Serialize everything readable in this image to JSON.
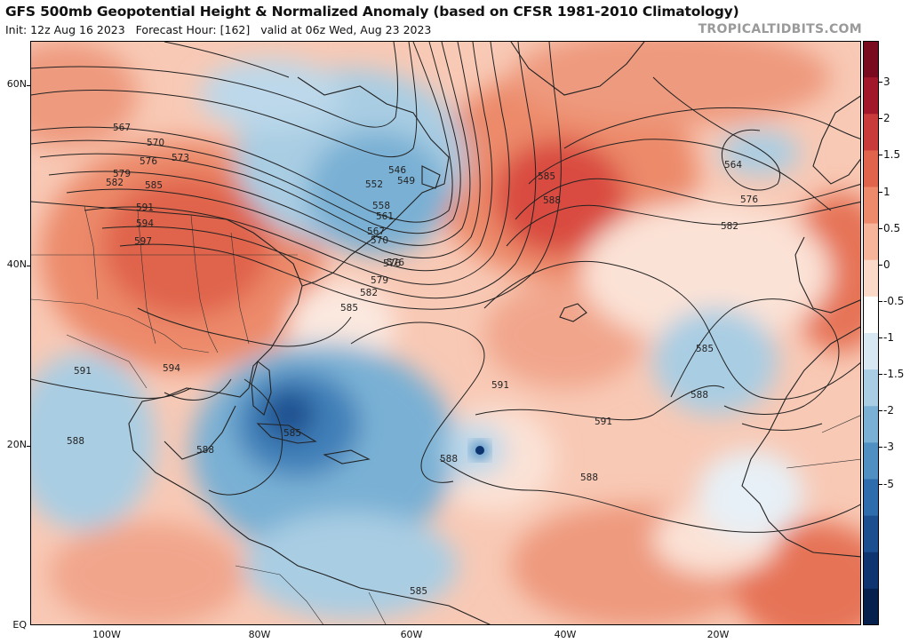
{
  "header": {
    "title": "GFS 500mb Geopotential Height & Normalized Anomaly (based on CFSR 1981-2010 Climatology)",
    "init": "Init: 12z Aug 16 2023",
    "forecast_hour": "Forecast Hour: [162]",
    "valid": "valid at 06z Wed, Aug 23 2023",
    "watermark": "TROPICALTIDBITS.COM"
  },
  "axes": {
    "lat_labels": [
      "60N",
      "40N",
      "20N",
      "EQ"
    ],
    "lon_labels": [
      "100W",
      "80W",
      "60W",
      "40W",
      "20W"
    ]
  },
  "colorbar": {
    "labels": [
      "3",
      "2",
      "1.5",
      "1",
      "0.5",
      "0",
      "-0.5",
      "-1",
      "-1.5",
      "-2",
      "-3",
      "-5"
    ],
    "colors": [
      "#7a0a1e",
      "#a3172a",
      "#c93a3a",
      "#e0634c",
      "#ee8a6c",
      "#f6b49a",
      "#fbd9c9",
      "#ffffff",
      "#d7e8f2",
      "#a9cde3",
      "#79b0d4",
      "#4f8fc2",
      "#2e6dad",
      "#1c4f8f",
      "#0e3570",
      "#06204d"
    ]
  },
  "contour_labels": [
    "567",
    "570",
    "573",
    "576",
    "579",
    "582",
    "585",
    "591",
    "594",
    "597",
    "546",
    "549",
    "552",
    "558",
    "561",
    "576",
    "585",
    "588",
    "564",
    "576",
    "582",
    "585",
    "588",
    "591",
    "591",
    "588",
    "588",
    "585",
    "588",
    "591",
    "594",
    "582",
    "579",
    "576",
    "570",
    "567",
    "585",
    "588",
    "585"
  ],
  "colors": {
    "land_line": "#222222",
    "contour": "#222222",
    "warm": "#e67356",
    "cool": "#4f8fc2"
  }
}
